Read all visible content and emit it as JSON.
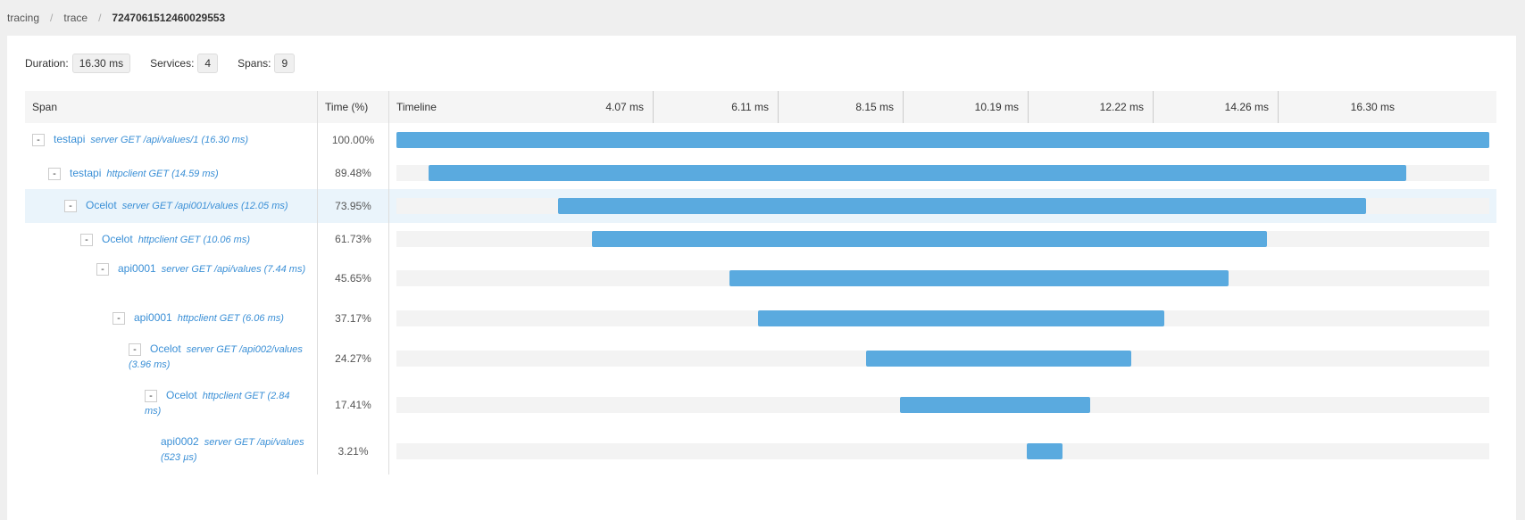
{
  "breadcrumb": [
    "tracing",
    "trace",
    "7247061512460029553"
  ],
  "summary": {
    "duration_label": "Duration:",
    "duration": "16.30 ms",
    "services_label": "Services:",
    "services": "4",
    "spans_label": "Spans:",
    "spans": "9"
  },
  "table": {
    "col_span": "Span",
    "col_time": "Time (%)",
    "col_timeline": "Timeline",
    "ticks": [
      "4.07 ms",
      "6.11 ms",
      "8.15 ms",
      "10.19 ms",
      "12.22 ms",
      "14.26 ms",
      "16.30 ms"
    ]
  },
  "colors": {
    "bar": "#5aaadf",
    "link": "#3a8fd6",
    "highlight": "#eaf4fb"
  },
  "spans": [
    {
      "toggle": "-",
      "service": "testapi",
      "operation": "server GET /api/values/1 (16.30 ms)",
      "percent": "100.00%",
      "start": 0.0,
      "fraction": 1.0,
      "depth": 0,
      "height": 38
    },
    {
      "toggle": "-",
      "service": "testapi",
      "operation": "httpclient GET (14.59 ms)",
      "percent": "89.48%",
      "start": 0.0295,
      "fraction": 0.8948,
      "depth": 1,
      "height": 36
    },
    {
      "toggle": "-",
      "service": "Ocelot",
      "operation": "server GET /api001/values (12.05 ms)",
      "percent": "73.95%",
      "start": 0.148,
      "fraction": 0.7395,
      "depth": 2,
      "height": 38,
      "highlight": true
    },
    {
      "toggle": "-",
      "service": "Ocelot",
      "operation": "httpclient GET (10.06 ms)",
      "percent": "61.73%",
      "start": 0.179,
      "fraction": 0.6173,
      "depth": 3,
      "height": 36
    },
    {
      "toggle": "-",
      "service": "api0001",
      "operation": "server GET /api/values (7.44 ms)",
      "percent": "45.65%",
      "start": 0.305,
      "fraction": 0.4565,
      "depth": 4,
      "height": 52
    },
    {
      "toggle": "-",
      "service": "api0001",
      "operation": "httpclient GET (6.06 ms)",
      "percent": "37.17%",
      "start": 0.331,
      "fraction": 0.3717,
      "depth": 5,
      "height": 38
    },
    {
      "toggle": "-",
      "service": "Ocelot",
      "operation": "server GET /api002/values (3.96 ms)",
      "percent": "24.27%",
      "start": 0.43,
      "fraction": 0.2427,
      "depth": 6,
      "height": 52
    },
    {
      "toggle": "-",
      "service": "Ocelot",
      "operation": "httpclient GET (2.84 ms)",
      "percent": "17.41%",
      "start": 0.461,
      "fraction": 0.1741,
      "depth": 7,
      "height": 52
    },
    {
      "toggle": "",
      "service": "api0002",
      "operation": "server GET /api/values (523 µs)",
      "percent": "3.21%",
      "start": 0.577,
      "fraction": 0.0321,
      "depth": 8,
      "height": 52
    }
  ]
}
